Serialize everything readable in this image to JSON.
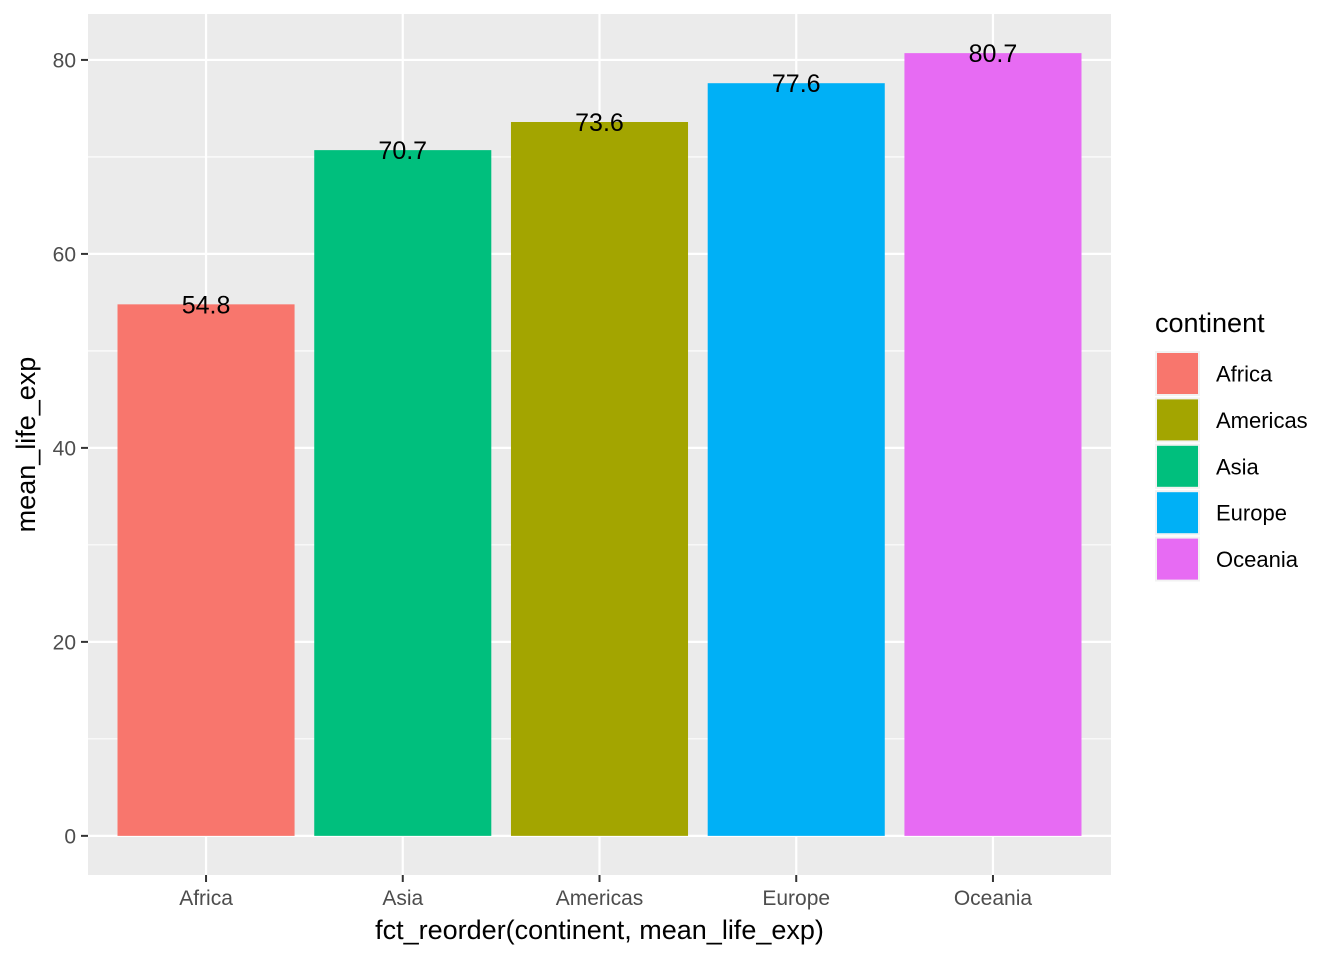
{
  "chart_data": {
    "type": "bar",
    "categories": [
      "Africa",
      "Asia",
      "Americas",
      "Europe",
      "Oceania"
    ],
    "values": [
      54.8,
      70.7,
      73.6,
      77.6,
      80.7
    ],
    "data_labels": [
      "54.8",
      "70.7",
      "73.6",
      "77.6",
      "80.7"
    ],
    "bar_colors": [
      "#F8766D",
      "#00BF7D",
      "#A3A500",
      "#00B0F6",
      "#E76BF3"
    ],
    "xlabel": "fct_reorder(continent, mean_life_exp)",
    "ylabel": "mean_life_exp",
    "ylim": [
      -4.035,
      84.735
    ],
    "yticks": [
      0,
      20,
      40,
      60,
      80
    ],
    "ytick_labels": [
      "0",
      "20",
      "40",
      "60",
      "80"
    ],
    "yminor": [
      10,
      30,
      50,
      70
    ],
    "grid": true,
    "panel_background": "#EBEBEB",
    "grid_color": "#FFFFFF",
    "legend": {
      "title": "continent",
      "position": "right",
      "items": [
        {
          "label": "Africa",
          "color": "#F8766D"
        },
        {
          "label": "Americas",
          "color": "#A3A500"
        },
        {
          "label": "Asia",
          "color": "#00BF7D"
        },
        {
          "label": "Europe",
          "color": "#00B0F6"
        },
        {
          "label": "Oceania",
          "color": "#E76BF3"
        }
      ]
    }
  }
}
